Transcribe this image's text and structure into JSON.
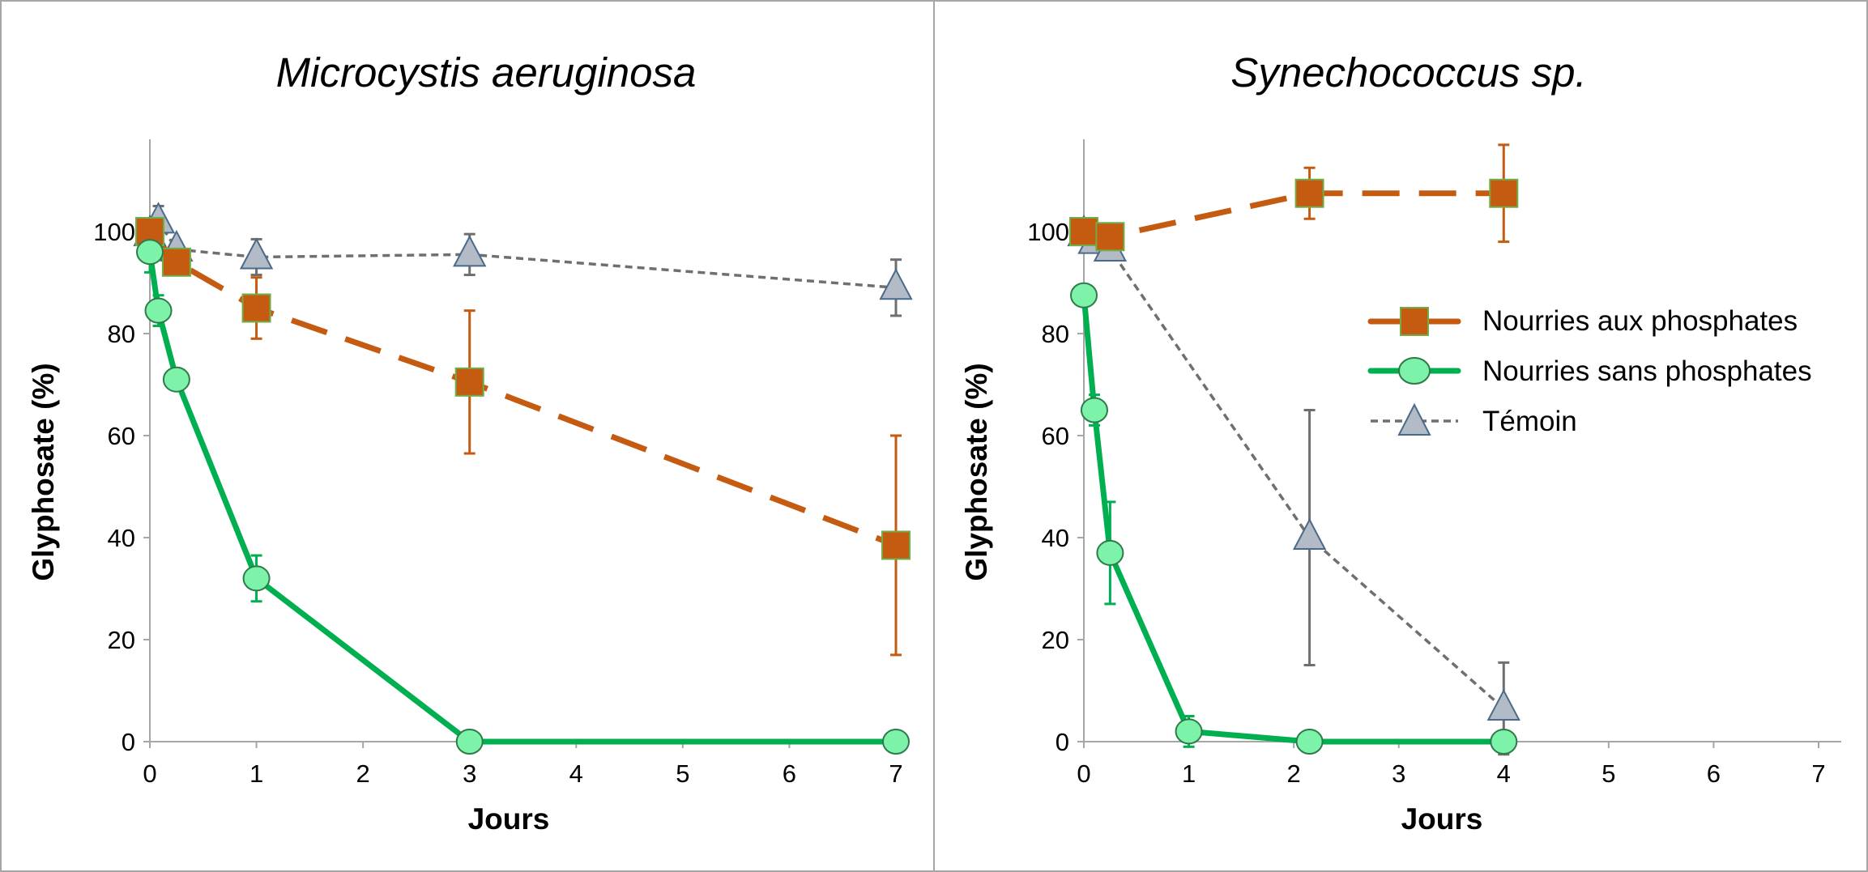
{
  "colors": {
    "phosphate": "#c55a11",
    "phosphate_marker_stroke": "#70ad47",
    "no_phosphate": "#00b050",
    "no_phosphate_marker": "#7df3a9",
    "no_phosphate_marker_stroke": "#2f7a4a",
    "control": "#6f6f6f",
    "control_marker": "#b3bcc6",
    "control_marker_stroke": "#4a6a8a"
  },
  "legend": {
    "phosphate": "Nourries aux phosphates",
    "no_phosphate": "Nourries sans phosphates",
    "control": "Témoin"
  },
  "chart_data": [
    {
      "type": "line",
      "title": "Microcystis aeruginosa",
      "xlabel": "Jours",
      "ylabel": "Glyphosate (%)",
      "xlim": [
        0,
        7
      ],
      "ylim": [
        0,
        118
      ],
      "xticks": [
        "0",
        "1",
        "2",
        "3",
        "4",
        "5",
        "6",
        "7"
      ],
      "yticks": [
        "0",
        "20",
        "40",
        "60",
        "80",
        "100"
      ],
      "series": [
        {
          "key": "phosphate",
          "style": "dashed-long",
          "marker": "square",
          "points": [
            {
              "x": 0.0,
              "y": 100,
              "err": 0
            },
            {
              "x": 0.25,
              "y": 94,
              "err": 2
            },
            {
              "x": 1.0,
              "y": 85,
              "err": 6
            },
            {
              "x": 3.0,
              "y": 70.5,
              "err": 14
            },
            {
              "x": 7.0,
              "y": 38.5,
              "err": 21.5
            }
          ]
        },
        {
          "key": "no_phosphate",
          "style": "solid",
          "marker": "circle",
          "points": [
            {
              "x": 0.0,
              "y": 96,
              "err": 4
            },
            {
              "x": 0.08,
              "y": 84.5,
              "err": 3
            },
            {
              "x": 0.25,
              "y": 71,
              "err": 0
            },
            {
              "x": 1.0,
              "y": 32,
              "err": 4.5
            },
            {
              "x": 3.0,
              "y": 0,
              "err": 0
            },
            {
              "x": 7.0,
              "y": 0,
              "err": 0
            }
          ]
        },
        {
          "key": "control",
          "style": "dashed-short",
          "marker": "triangle",
          "points": [
            {
              "x": 0.0,
              "y": 99.5,
              "err": 0
            },
            {
              "x": 0.08,
              "y": 102,
              "err": 3
            },
            {
              "x": 0.25,
              "y": 96.5,
              "err": 0
            },
            {
              "x": 1.0,
              "y": 95,
              "err": 3.5
            },
            {
              "x": 3.0,
              "y": 95.5,
              "err": 4
            },
            {
              "x": 7.0,
              "y": 89,
              "err": 5.5
            }
          ]
        }
      ]
    },
    {
      "type": "line",
      "title": "Synechococcus sp.",
      "xlabel": "Jours",
      "ylabel": "Glyphosate (%)",
      "xlim": [
        0,
        7
      ],
      "ylim": [
        0,
        118
      ],
      "xticks": [
        "0",
        "1",
        "2",
        "3",
        "4",
        "5",
        "6",
        "7"
      ],
      "yticks": [
        "0",
        "20",
        "40",
        "60",
        "80",
        "100"
      ],
      "series": [
        {
          "key": "phosphate",
          "style": "dashed-long",
          "marker": "square",
          "points": [
            {
              "x": 0.0,
              "y": 100,
              "err": 0
            },
            {
              "x": 0.25,
              "y": 99,
              "err": 0
            },
            {
              "x": 2.15,
              "y": 107.5,
              "err": 5
            },
            {
              "x": 4.0,
              "y": 107.5,
              "err": 9.5
            }
          ]
        },
        {
          "key": "no_phosphate",
          "style": "solid",
          "marker": "circle",
          "points": [
            {
              "x": 0.0,
              "y": 87.5,
              "err": 0
            },
            {
              "x": 0.1,
              "y": 65,
              "err": 3
            },
            {
              "x": 0.25,
              "y": 37,
              "err": 10
            },
            {
              "x": 1.0,
              "y": 2,
              "err": 3
            },
            {
              "x": 2.15,
              "y": 0,
              "err": 0
            },
            {
              "x": 4.0,
              "y": 0,
              "err": 0
            }
          ]
        },
        {
          "key": "control",
          "style": "dashed-short",
          "marker": "triangle",
          "points": [
            {
              "x": 0.0,
              "y": 99.5,
              "err": 0
            },
            {
              "x": 0.1,
              "y": 98,
              "err": 0
            },
            {
              "x": 0.25,
              "y": 96.5,
              "err": 0
            },
            {
              "x": 2.15,
              "y": 40,
              "err": 25
            },
            {
              "x": 4.0,
              "y": 6.5,
              "err": 9
            }
          ]
        }
      ]
    }
  ]
}
